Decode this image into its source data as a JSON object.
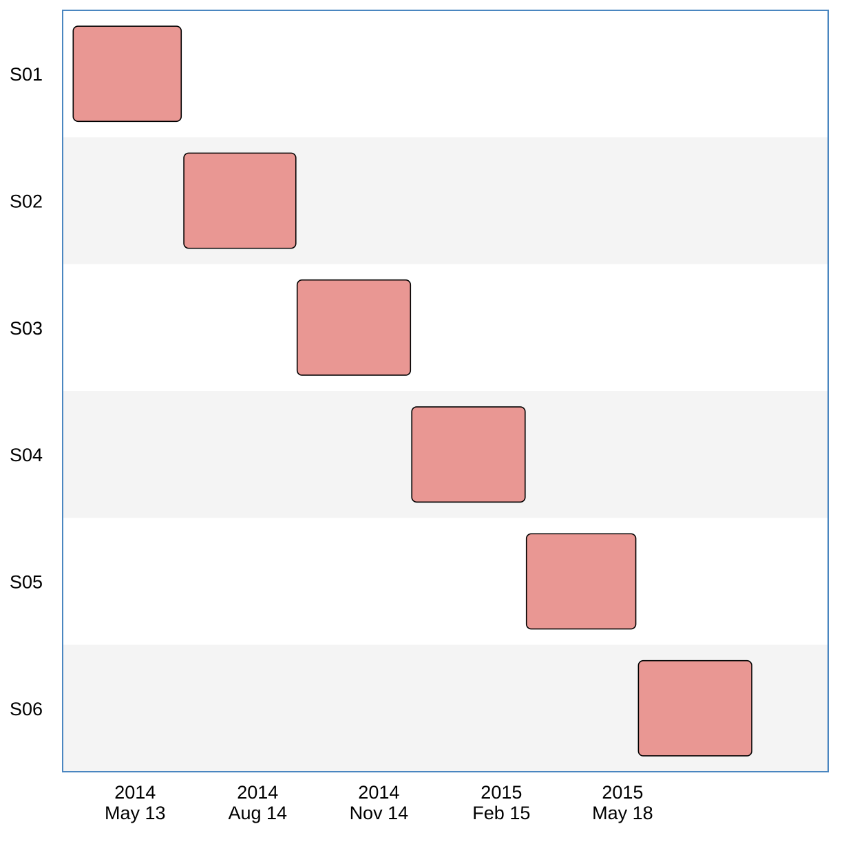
{
  "chart_data": {
    "type": "gantt",
    "title": "",
    "xlabel": "",
    "ylabel": "",
    "x_axis_type": "date",
    "xlim": [
      "2014-03-19",
      "2015-10-21"
    ],
    "grid": false,
    "legend": "none",
    "band_colors": [
      "#ffffff",
      "#f4f4f4"
    ],
    "frame_color": "#4a86c0",
    "bar_color": "#e99793",
    "bar_border_color": "#000000",
    "tasks": [
      {
        "label": "S01",
        "start": "2014-03-27",
        "end": "2014-06-17"
      },
      {
        "label": "S02",
        "start": "2014-06-19",
        "end": "2014-09-12"
      },
      {
        "label": "S03",
        "start": "2014-09-13",
        "end": "2014-12-08"
      },
      {
        "label": "S04",
        "start": "2014-12-09",
        "end": "2015-03-05"
      },
      {
        "label": "S05",
        "start": "2015-03-06",
        "end": "2015-05-28"
      },
      {
        "label": "S06",
        "start": "2015-05-30",
        "end": "2015-08-24"
      }
    ],
    "ticks": [
      {
        "date": "2014-05-13",
        "year": "2014",
        "label": "May 13"
      },
      {
        "date": "2014-08-14",
        "year": "2014",
        "label": "Aug 14"
      },
      {
        "date": "2014-11-14",
        "year": "2014",
        "label": "Nov 14"
      },
      {
        "date": "2015-02-15",
        "year": "2015",
        "label": "Feb 15"
      },
      {
        "date": "2015-05-18",
        "year": "2015",
        "label": "May 18"
      }
    ]
  }
}
